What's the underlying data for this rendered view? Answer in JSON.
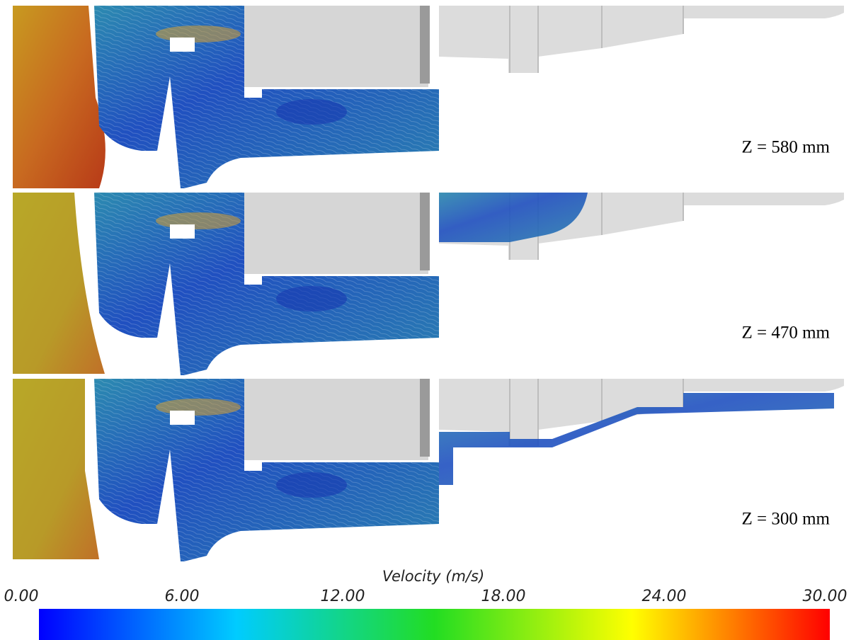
{
  "panels": [
    {
      "label": "Z = 580 mm"
    },
    {
      "label": "Z = 470 mm"
    },
    {
      "label": "Z = 300 mm"
    }
  ],
  "colorbar": {
    "title": "Velocity (m/s)",
    "ticks": [
      {
        "value": 0,
        "label": "0.00"
      },
      {
        "value": 6,
        "label": "6.00"
      },
      {
        "value": 12,
        "label": "12.00"
      },
      {
        "value": 18,
        "label": "18.00"
      },
      {
        "value": 24,
        "label": "24.00"
      },
      {
        "value": 30,
        "label": "30.00"
      }
    ]
  }
}
